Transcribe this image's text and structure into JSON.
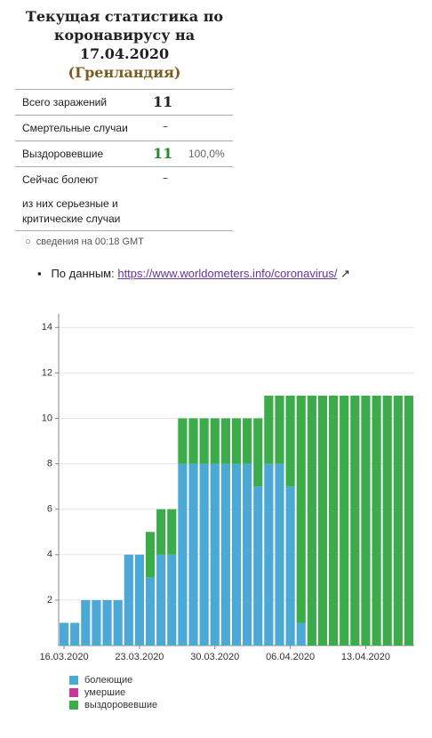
{
  "header": {
    "title": "Текущая статистика по коронавирусу на 17.04.2020",
    "country": "(Гренландия)"
  },
  "table": {
    "rows": [
      [
        "Всего заражений",
        "11"
      ],
      [
        "Смертельные случаи",
        "–"
      ],
      [
        "Выздоровевшие",
        "11",
        "100,0%"
      ],
      [
        "Сейчас болеют",
        "–"
      ],
      [
        "из них серьезные и критические случаи"
      ]
    ]
  },
  "note": "сведения на 00:18 GMT",
  "source": {
    "label": "По данным:",
    "link": "https://www.worldometers.info/coronavirus/"
  },
  "chart_data": {
    "type": "stacked-bar",
    "categories": [
      "16.03.2020",
      null,
      null,
      null,
      null,
      null,
      null,
      "23.03.2020",
      null,
      null,
      null,
      null,
      null,
      null,
      "30.03.2020",
      null,
      null,
      null,
      null,
      null,
      null,
      "06.04.2020",
      null,
      null,
      null,
      null,
      null,
      null,
      "13.04.2020",
      null,
      null,
      null,
      null
    ],
    "series": [
      {
        "name": "болеющие",
        "color": "#4ca9d6",
        "values": [
          1,
          1,
          2,
          2,
          2,
          2,
          4,
          4,
          3,
          4,
          4,
          8,
          8,
          8,
          8,
          8,
          8,
          8,
          7,
          8,
          8,
          7,
          1,
          0,
          0,
          0,
          0,
          0,
          0,
          0,
          0,
          0,
          0
        ]
      },
      {
        "name": "умершие",
        "color": "#c4399b",
        "values": [
          0,
          0,
          0,
          0,
          0,
          0,
          0,
          0,
          0,
          0,
          0,
          0,
          0,
          0,
          0,
          0,
          0,
          0,
          0,
          0,
          0,
          0,
          0,
          0,
          0,
          0,
          0,
          0,
          0,
          0,
          0,
          0,
          0
        ]
      },
      {
        "name": "выздоровевшие",
        "color": "#3cab4a",
        "values": [
          0,
          0,
          0,
          0,
          0,
          0,
          0,
          0,
          2,
          2,
          2,
          2,
          2,
          2,
          2,
          2,
          2,
          2,
          3,
          3,
          3,
          4,
          10,
          11,
          11,
          11,
          11,
          11,
          11,
          11,
          11,
          11,
          11
        ]
      }
    ],
    "ylim": [
      0,
      14.6
    ],
    "yticks": [
      2,
      4,
      6,
      8,
      10,
      12,
      14
    ],
    "grid": true
  }
}
